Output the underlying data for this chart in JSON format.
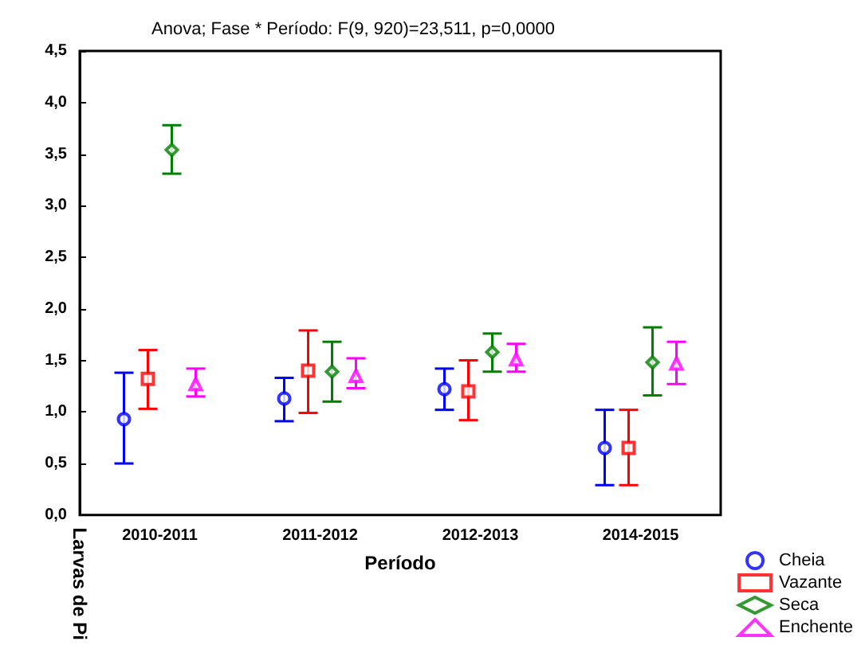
{
  "chart_data": {
    "type": "scatter",
    "title": "Anova; Fase * Período: F(9, 920)=23,511, p=0,0000",
    "xlabel": "Período",
    "ylabel": "Larvas de Pi",
    "categories": [
      "2010-2011",
      "2011-2012",
      "2012-2013",
      "2014-2015"
    ],
    "series": [
      {
        "name": "Cheia",
        "color": "#0000ff",
        "marker": "circle",
        "values": [
          0.93,
          1.13,
          1.22,
          0.65
        ],
        "errors": [
          [
            0.5,
            1.38
          ],
          [
            0.91,
            1.33
          ],
          [
            1.02,
            1.42
          ],
          [
            0.29,
            1.02
          ]
        ]
      },
      {
        "name": "Vazante",
        "color": "#ff0000",
        "marker": "square",
        "values": [
          1.32,
          1.4,
          1.2,
          0.65
        ],
        "errors": [
          [
            1.03,
            1.6
          ],
          [
            0.99,
            1.79
          ],
          [
            0.92,
            1.5
          ],
          [
            0.29,
            1.02
          ]
        ]
      },
      {
        "name": "Seca",
        "color": "#008000",
        "marker": "diamond",
        "values": [
          3.54,
          1.39,
          1.58,
          1.48
        ],
        "errors": [
          [
            3.31,
            3.78
          ],
          [
            1.1,
            1.68
          ],
          [
            1.39,
            1.76
          ],
          [
            1.16,
            1.82
          ]
        ]
      },
      {
        "name": "Enchente",
        "color": "#ff00ff",
        "marker": "triangle",
        "values": [
          1.27,
          1.35,
          1.51,
          1.47
        ],
        "errors": [
          [
            1.15,
            1.42
          ],
          [
            1.23,
            1.52
          ],
          [
            1.39,
            1.66
          ],
          [
            1.27,
            1.68
          ]
        ]
      }
    ],
    "ylim": [
      0,
      4.5
    ],
    "yticks": [
      {
        "value": 0,
        "label": "0,0"
      },
      {
        "value": 0.5,
        "label": "0,5"
      },
      {
        "value": 1,
        "label": "1,0"
      },
      {
        "value": 1.5,
        "label": "1,5"
      },
      {
        "value": 2,
        "label": "2,0"
      },
      {
        "value": 2.5,
        "label": "2,5"
      },
      {
        "value": 3,
        "label": "3,0"
      },
      {
        "value": 3.5,
        "label": "3,5"
      },
      {
        "value": 4,
        "label": "4,0"
      },
      {
        "value": 4.5,
        "label": "4,5"
      }
    ],
    "grid": false,
    "legend": "bottom right"
  }
}
